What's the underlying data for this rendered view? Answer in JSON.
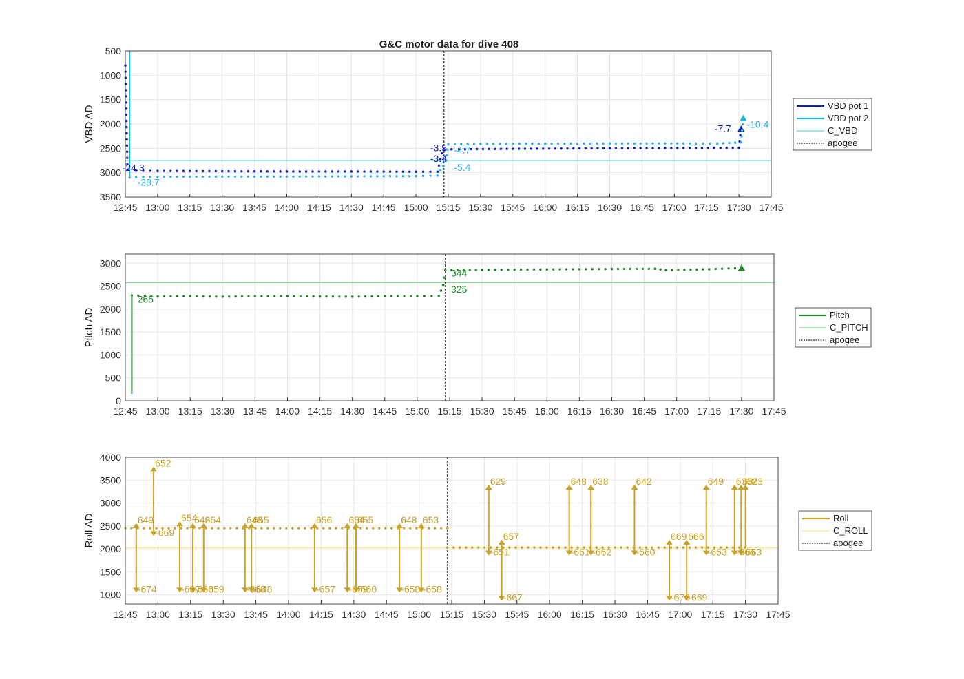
{
  "title": "G&C motor data for dive 408",
  "x_ticks": [
    "12:45",
    "13:00",
    "13:15",
    "13:30",
    "13:45",
    "14:00",
    "14:15",
    "14:30",
    "14:45",
    "15:00",
    "15:15",
    "15:30",
    "15:45",
    "16:00",
    "16:15",
    "16:30",
    "16:45",
    "17:00",
    "17:15",
    "17:30",
    "17:45"
  ],
  "chart_data": [
    {
      "type": "line",
      "ylabel": "VBD AD",
      "xlim": [
        "12:45",
        "17:45"
      ],
      "ylim": [
        500,
        3500
      ],
      "y_reversed": true,
      "yticks": [
        500,
        1000,
        1500,
        2000,
        2500,
        3000,
        3500
      ],
      "grid": true,
      "legend_position": "right",
      "legend": [
        "VBD pot 1",
        "VBD pot 2",
        "C_VBD",
        "apogee"
      ],
      "colors": {
        "VBD pot 1": "#0a1fc2",
        "VBD pot 2": "#22b5e6",
        "C_VBD": "#3fd3e0",
        "apogee": "#555555"
      },
      "reference_lines": [
        {
          "name": "C_VBD",
          "y": 2750
        }
      ],
      "apogee": "15:13",
      "series": [
        {
          "name": "VBD pot 1",
          "points": [
            {
              "t": "12:45",
              "y": 800
            },
            {
              "t": "12:46",
              "y": 2950
            },
            {
              "t": "12:50",
              "y": 2960
            },
            {
              "t": "13:00",
              "y": 2965
            },
            {
              "t": "13:30",
              "y": 2970
            },
            {
              "t": "14:00",
              "y": 2975
            },
            {
              "t": "14:30",
              "y": 2975
            },
            {
              "t": "15:00",
              "y": 2980
            },
            {
              "t": "15:10",
              "y": 2980
            },
            {
              "t": "15:12",
              "y": 2600
            },
            {
              "t": "15:13",
              "y": 2520
            },
            {
              "t": "15:20",
              "y": 2520
            },
            {
              "t": "15:45",
              "y": 2510
            },
            {
              "t": "16:30",
              "y": 2500
            },
            {
              "t": "17:10",
              "y": 2490
            },
            {
              "t": "17:30",
              "y": 2490
            },
            {
              "t": "17:31",
              "y": 2100
            }
          ]
        },
        {
          "name": "VBD pot 2",
          "points": [
            {
              "t": "12:47",
              "y": 500
            },
            {
              "t": "12:47",
              "y": 3100
            },
            {
              "t": "12:50",
              "y": 3090
            },
            {
              "t": "13:00",
              "y": 3085
            },
            {
              "t": "13:30",
              "y": 3080
            },
            {
              "t": "14:00",
              "y": 3080
            },
            {
              "t": "14:30",
              "y": 3075
            },
            {
              "t": "15:00",
              "y": 3070
            },
            {
              "t": "15:10",
              "y": 3060
            },
            {
              "t": "15:14",
              "y": 2750
            },
            {
              "t": "15:15",
              "y": 2420
            },
            {
              "t": "15:30",
              "y": 2410
            },
            {
              "t": "16:00",
              "y": 2405
            },
            {
              "t": "16:30",
              "y": 2400
            },
            {
              "t": "17:10",
              "y": 2400
            },
            {
              "t": "17:20",
              "y": 2400
            },
            {
              "t": "17:31",
              "y": 2380
            },
            {
              "t": "17:32",
              "y": 1880
            }
          ]
        }
      ],
      "annotations": [
        {
          "text": "-24.3",
          "t": "12:43",
          "y": 2970,
          "series": "VBD pot 1"
        },
        {
          "text": "-28.7",
          "t": "12:50",
          "y": 3270,
          "series": "VBD pot 2"
        },
        {
          "text": "-3.5",
          "t": "15:06",
          "y": 2560,
          "series": "VBD pot 1"
        },
        {
          "text": "-3.4",
          "t": "15:06",
          "y": 2780,
          "series": "VBD pot 1"
        },
        {
          "text": "-4.7",
          "t": "15:17",
          "y": 2600,
          "series": "VBD pot 2"
        },
        {
          "text": "-5.4",
          "t": "15:17",
          "y": 2960,
          "series": "VBD pot 2"
        },
        {
          "text": "-7.7",
          "t": "17:18",
          "y": 2160,
          "series": "VBD pot 1"
        },
        {
          "text": "-10.4",
          "t": "17:33",
          "y": 2080,
          "series": "VBD pot 2"
        }
      ]
    },
    {
      "type": "line",
      "ylabel": "Pitch AD",
      "xlim": [
        "12:45",
        "17:45"
      ],
      "ylim": [
        0,
        3200
      ],
      "yticks": [
        0,
        500,
        1000,
        1500,
        2000,
        2500,
        3000
      ],
      "grid": true,
      "legend_position": "right",
      "legend": [
        "Pitch",
        "C_PITCH",
        "apogee"
      ],
      "colors": {
        "Pitch": "#208a2a",
        "C_PITCH": "#5fd06a",
        "apogee": "#555555"
      },
      "reference_lines": [
        {
          "name": "C_PITCH",
          "y": 2580
        }
      ],
      "apogee": "15:13",
      "series": [
        {
          "name": "Pitch",
          "points": [
            {
              "t": "12:48",
              "y": 150
            },
            {
              "t": "12:48",
              "y": 2300
            },
            {
              "t": "13:00",
              "y": 2275
            },
            {
              "t": "13:15",
              "y": 2280
            },
            {
              "t": "13:30",
              "y": 2270
            },
            {
              "t": "13:45",
              "y": 2280
            },
            {
              "t": "14:00",
              "y": 2280
            },
            {
              "t": "14:15",
              "y": 2275
            },
            {
              "t": "14:30",
              "y": 2270
            },
            {
              "t": "14:45",
              "y": 2280
            },
            {
              "t": "15:00",
              "y": 2280
            },
            {
              "t": "15:10",
              "y": 2285
            },
            {
              "t": "15:12",
              "y": 2520
            },
            {
              "t": "15:13",
              "y": 2850
            },
            {
              "t": "15:30",
              "y": 2855
            },
            {
              "t": "16:00",
              "y": 2865
            },
            {
              "t": "16:30",
              "y": 2875
            },
            {
              "t": "16:50",
              "y": 2880
            },
            {
              "t": "16:55",
              "y": 2850
            },
            {
              "t": "17:15",
              "y": 2870
            },
            {
              "t": "17:30",
              "y": 2900
            }
          ]
        }
      ],
      "annotations": [
        {
          "text": "265",
          "t": "12:50",
          "y": 2140,
          "series": "Pitch"
        },
        {
          "text": "344",
          "t": "15:15",
          "y": 2710,
          "series": "Pitch"
        },
        {
          "text": "325",
          "t": "15:15",
          "y": 2360,
          "series": "Pitch"
        }
      ]
    },
    {
      "type": "line",
      "ylabel": "Roll AD",
      "xlim": [
        "12:45",
        "17:45"
      ],
      "ylim": [
        800,
        4000
      ],
      "yticks": [
        1000,
        1500,
        2000,
        2500,
        3000,
        3500,
        4000
      ],
      "grid": true,
      "legend_position": "right",
      "legend": [
        "Roll",
        "C_ROLL",
        "apogee"
      ],
      "colors": {
        "Roll": "#c9a227",
        "C_ROLL": "#f3e16a",
        "apogee": "#555555"
      },
      "reference_lines": [
        {
          "name": "C_ROLL",
          "y": 2030
        }
      ],
      "apogee": "15:13",
      "baselines": [
        {
          "from": "12:45",
          "to": "15:13",
          "y": 2450
        },
        {
          "from": "15:13",
          "to": "17:30",
          "y": 2030
        }
      ],
      "annotations": [
        {
          "text": "649",
          "t": "12:50",
          "y": 2560
        },
        {
          "text": "-674",
          "t": "12:50",
          "y": 1050
        },
        {
          "text": "652",
          "t": "12:58",
          "y": 3800
        },
        {
          "text": "-669",
          "t": "12:58",
          "y": 2280
        },
        {
          "text": "654",
          "t": "13:10",
          "y": 2600
        },
        {
          "text": "-667",
          "t": "13:10",
          "y": 1050
        },
        {
          "text": "642",
          "t": "13:16",
          "y": 2560
        },
        {
          "text": "-660",
          "t": "13:16",
          "y": 1050
        },
        {
          "text": "654",
          "t": "13:21",
          "y": 2560
        },
        {
          "text": "-659",
          "t": "13:21",
          "y": 1050
        },
        {
          "text": "648",
          "t": "13:40",
          "y": 2560
        },
        {
          "text": "-668",
          "t": "13:40",
          "y": 1050
        },
        {
          "text": "655",
          "t": "13:43",
          "y": 2560
        },
        {
          "text": "-648",
          "t": "13:43",
          "y": 1050
        },
        {
          "text": "656",
          "t": "14:12",
          "y": 2560
        },
        {
          "text": "-657",
          "t": "14:12",
          "y": 1050
        },
        {
          "text": "654",
          "t": "14:27",
          "y": 2560
        },
        {
          "text": "-659",
          "t": "14:27",
          "y": 1050
        },
        {
          "text": "655",
          "t": "14:31",
          "y": 2560
        },
        {
          "text": "-660",
          "t": "14:31",
          "y": 1050
        },
        {
          "text": "648",
          "t": "14:51",
          "y": 2560
        },
        {
          "text": "-658",
          "t": "14:51",
          "y": 1050
        },
        {
          "text": "653",
          "t": "15:01",
          "y": 2560
        },
        {
          "text": "-658",
          "t": "15:01",
          "y": 1050
        },
        {
          "text": "629",
          "t": "15:32",
          "y": 3400
        },
        {
          "text": "-651",
          "t": "15:32",
          "y": 1860
        },
        {
          "text": "657",
          "t": "15:38",
          "y": 2200
        },
        {
          "text": "-667",
          "t": "15:38",
          "y": 870
        },
        {
          "text": "648",
          "t": "16:09",
          "y": 3400
        },
        {
          "text": "-661",
          "t": "16:09",
          "y": 1860
        },
        {
          "text": "638",
          "t": "16:19",
          "y": 3400
        },
        {
          "text": "-662",
          "t": "16:19",
          "y": 1860
        },
        {
          "text": "642",
          "t": "16:39",
          "y": 3400
        },
        {
          "text": "-660",
          "t": "16:39",
          "y": 1860
        },
        {
          "text": "669",
          "t": "16:55",
          "y": 2200
        },
        {
          "text": "-670",
          "t": "16:55",
          "y": 870
        },
        {
          "text": "666",
          "t": "17:03",
          "y": 2200
        },
        {
          "text": "-669",
          "t": "17:03",
          "y": 870
        },
        {
          "text": "649",
          "t": "17:12",
          "y": 3400
        },
        {
          "text": "-663",
          "t": "17:12",
          "y": 1860
        },
        {
          "text": "633",
          "t": "17:25",
          "y": 3400
        },
        {
          "text": "-665",
          "t": "17:25",
          "y": 1860
        },
        {
          "text": "634",
          "t": "17:28",
          "y": 3400
        },
        {
          "text": "-663",
          "t": "17:28",
          "y": 1860
        },
        {
          "text": "623",
          "t": "17:30",
          "y": 3400
        }
      ]
    }
  ]
}
